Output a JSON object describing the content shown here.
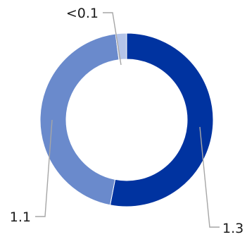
{
  "chart_data": {
    "type": "pie",
    "variant": "donut",
    "title": "",
    "slices": [
      {
        "label": "1.3",
        "value": 1.3,
        "color": "#0033a0"
      },
      {
        "label": "1.1",
        "value": 1.1,
        "color": "#6a8acc"
      },
      {
        "label": "<0.1",
        "value": 0.05,
        "color": "#b3c3e8"
      }
    ],
    "legend": "none"
  }
}
